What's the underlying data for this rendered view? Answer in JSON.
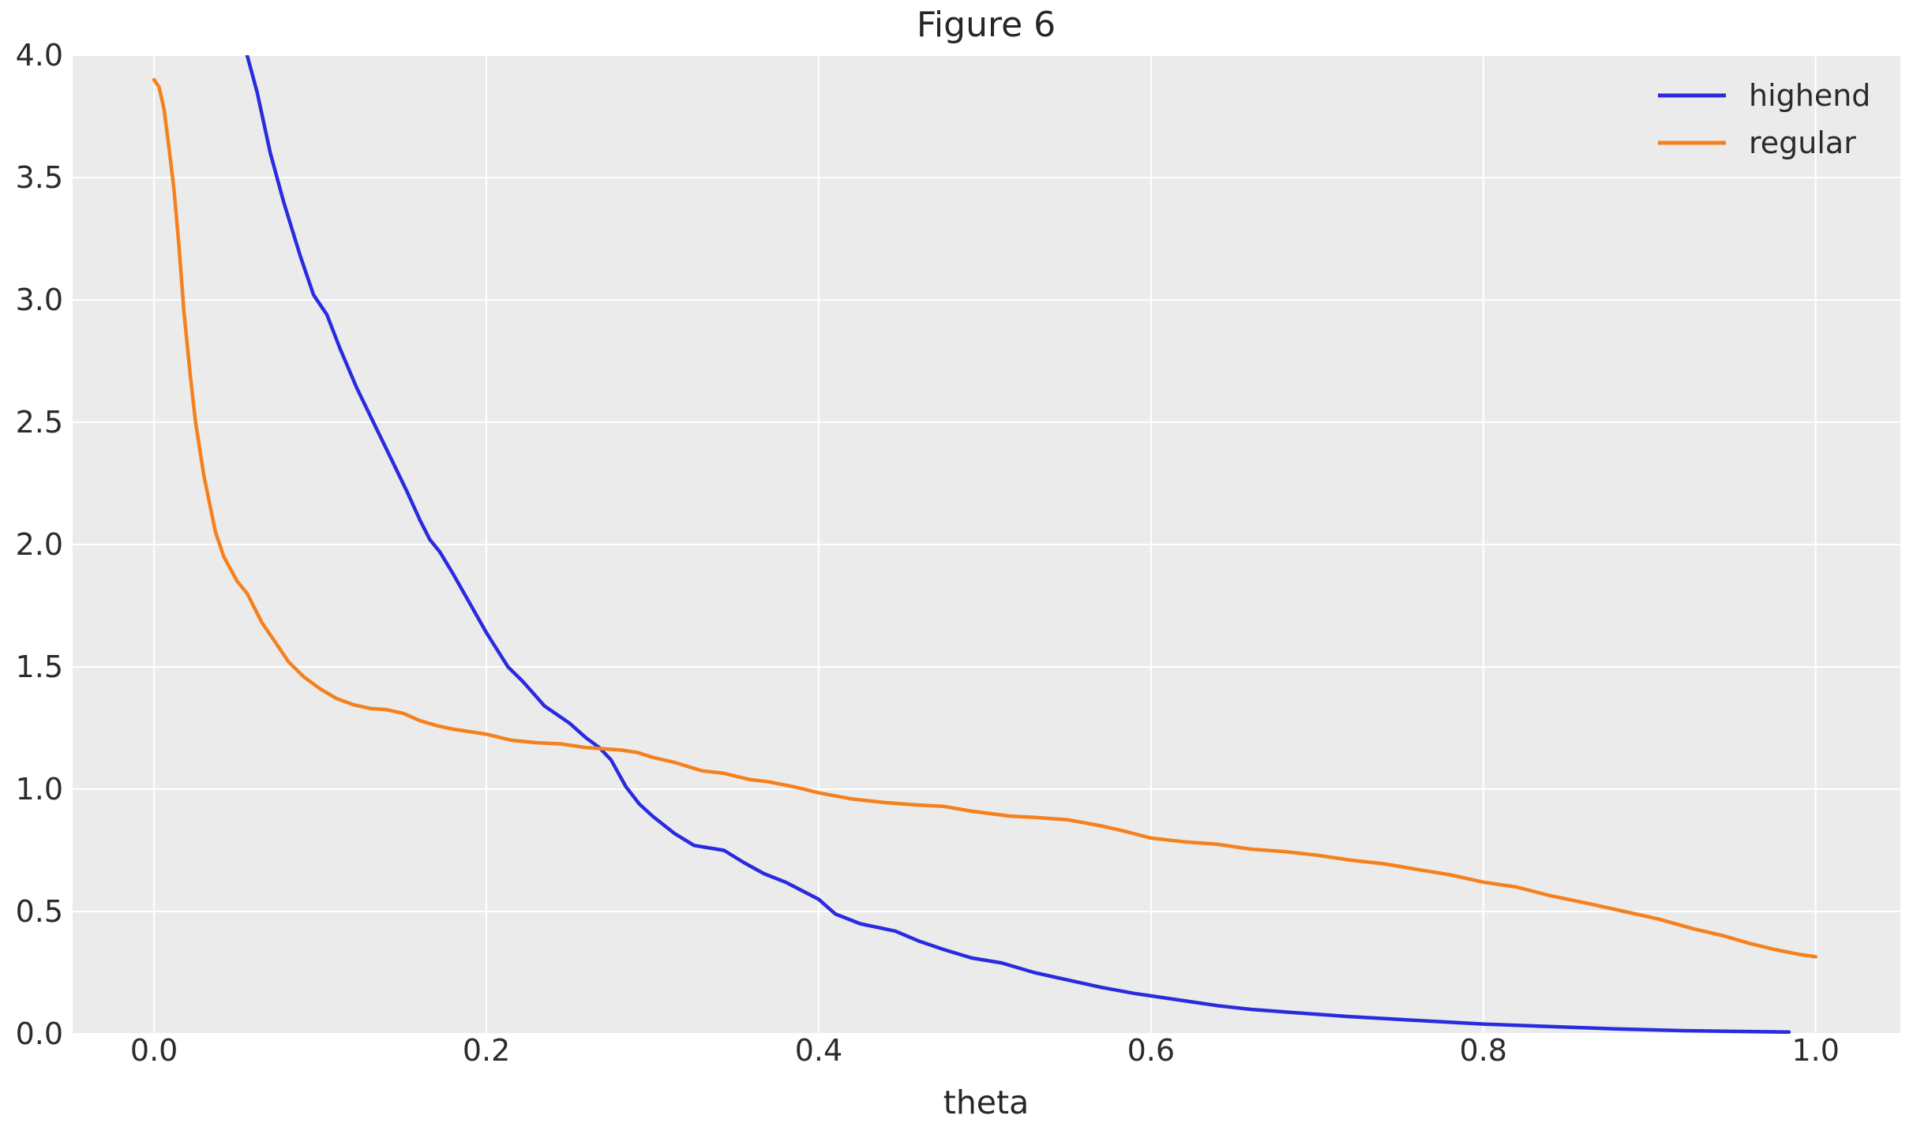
{
  "chart_data": {
    "type": "line",
    "title": "Figure 6",
    "xlabel": "theta",
    "ylabel": "",
    "xlim": [
      -0.049,
      1.051
    ],
    "ylim": [
      0,
      4
    ],
    "grid": true,
    "plot_background": "#ebebeb",
    "grid_color": "#ffffff",
    "text_color": "#262626",
    "legend_position": "upper right",
    "x_ticks": {
      "values": [
        0.0,
        0.2,
        0.4,
        0.6,
        0.8,
        1.0
      ],
      "labels": [
        "0.0",
        "0.2",
        "0.4",
        "0.6",
        "0.8",
        "1.0"
      ]
    },
    "y_ticks": {
      "values": [
        0.0,
        0.5,
        1.0,
        1.5,
        2.0,
        2.5,
        3.0,
        3.5,
        4.0
      ],
      "labels": [
        "0.0",
        "0.5",
        "1.0",
        "1.5",
        "2.0",
        "2.5",
        "3.0",
        "3.5",
        "4.0"
      ]
    },
    "series": [
      {
        "name": "highend",
        "color": "#2a2ae0",
        "x": [
          0.056,
          0.062,
          0.07,
          0.078,
          0.088,
          0.096,
          0.104,
          0.112,
          0.122,
          0.132,
          0.142,
          0.152,
          0.16,
          0.166,
          0.172,
          0.18,
          0.19,
          0.2,
          0.213,
          0.222,
          0.235,
          0.25,
          0.26,
          0.268,
          0.275,
          0.284,
          0.292,
          0.3,
          0.313,
          0.325,
          0.343,
          0.355,
          0.367,
          0.38,
          0.4,
          0.41,
          0.425,
          0.446,
          0.46,
          0.475,
          0.492,
          0.51,
          0.53,
          0.55,
          0.57,
          0.59,
          0.61,
          0.64,
          0.66,
          0.69,
          0.72,
          0.76,
          0.8,
          0.84,
          0.88,
          0.92,
          0.95,
          0.984
        ],
        "y": [
          4.0,
          3.85,
          3.6,
          3.4,
          3.18,
          3.02,
          2.94,
          2.8,
          2.64,
          2.5,
          2.36,
          2.22,
          2.1,
          2.02,
          1.97,
          1.88,
          1.76,
          1.64,
          1.5,
          1.44,
          1.34,
          1.27,
          1.21,
          1.17,
          1.12,
          1.01,
          0.94,
          0.89,
          0.82,
          0.77,
          0.75,
          0.7,
          0.655,
          0.62,
          0.55,
          0.49,
          0.45,
          0.42,
          0.38,
          0.345,
          0.31,
          0.29,
          0.25,
          0.22,
          0.19,
          0.165,
          0.145,
          0.115,
          0.1,
          0.085,
          0.07,
          0.055,
          0.04,
          0.03,
          0.02,
          0.013,
          0.01,
          0.007
        ]
      },
      {
        "name": "regular",
        "color": "#f5801e",
        "x": [
          0.0,
          0.003,
          0.006,
          0.009,
          0.012,
          0.015,
          0.018,
          0.022,
          0.025,
          0.03,
          0.037,
          0.042,
          0.05,
          0.056,
          0.065,
          0.072,
          0.081,
          0.09,
          0.1,
          0.11,
          0.12,
          0.13,
          0.14,
          0.15,
          0.16,
          0.17,
          0.18,
          0.19,
          0.2,
          0.215,
          0.23,
          0.245,
          0.26,
          0.27,
          0.281,
          0.291,
          0.3,
          0.313,
          0.33,
          0.343,
          0.358,
          0.37,
          0.385,
          0.4,
          0.42,
          0.44,
          0.46,
          0.475,
          0.492,
          0.515,
          0.53,
          0.55,
          0.57,
          0.583,
          0.6,
          0.62,
          0.64,
          0.66,
          0.68,
          0.7,
          0.72,
          0.74,
          0.762,
          0.78,
          0.8,
          0.82,
          0.84,
          0.865,
          0.885,
          0.905,
          0.926,
          0.945,
          0.96,
          0.975,
          0.99,
          1.0
        ],
        "y": [
          3.9,
          3.87,
          3.78,
          3.62,
          3.45,
          3.22,
          2.95,
          2.68,
          2.5,
          2.28,
          2.05,
          1.95,
          1.85,
          1.8,
          1.68,
          1.61,
          1.52,
          1.46,
          1.41,
          1.37,
          1.345,
          1.33,
          1.325,
          1.31,
          1.28,
          1.26,
          1.245,
          1.235,
          1.225,
          1.2,
          1.19,
          1.185,
          1.17,
          1.165,
          1.16,
          1.15,
          1.13,
          1.11,
          1.075,
          1.065,
          1.04,
          1.03,
          1.01,
          0.985,
          0.96,
          0.945,
          0.935,
          0.93,
          0.91,
          0.89,
          0.885,
          0.875,
          0.85,
          0.83,
          0.8,
          0.785,
          0.775,
          0.755,
          0.745,
          0.73,
          0.71,
          0.695,
          0.67,
          0.65,
          0.62,
          0.6,
          0.565,
          0.53,
          0.5,
          0.47,
          0.43,
          0.4,
          0.37,
          0.345,
          0.325,
          0.315
        ]
      }
    ]
  }
}
